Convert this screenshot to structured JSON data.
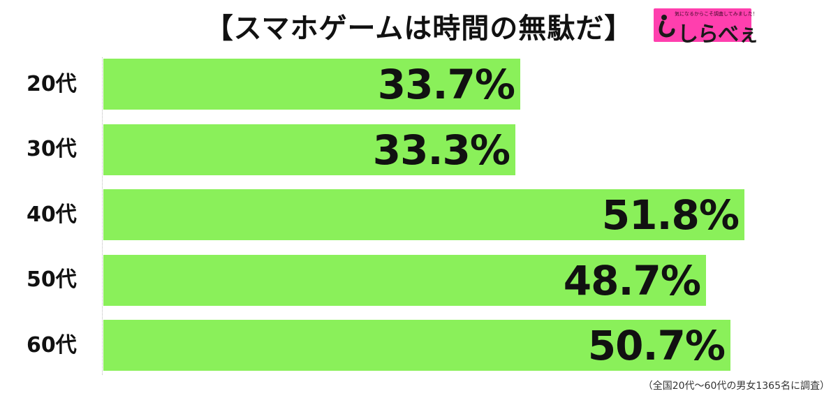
{
  "chart_data": {
    "type": "bar",
    "orientation": "horizontal",
    "title": "【スマホゲームは時間の無駄だ】",
    "categories": [
      "20代",
      "30代",
      "40代",
      "50代",
      "60代"
    ],
    "values": [
      33.7,
      33.3,
      51.8,
      48.7,
      50.7
    ],
    "value_labels": [
      "33.7%",
      "33.3%",
      "51.8%",
      "48.7%",
      "50.7%"
    ],
    "bar_color": "#8af05a",
    "xlim": [
      0,
      52.5
    ],
    "grid": false,
    "legend": "none",
    "footnote": "（全国20代〜60代の男女1365名に調査）"
  },
  "logo": {
    "name": "しらべぇ",
    "tagline": "気になるからこそ調査してみました！",
    "color": "#ff3fae"
  }
}
